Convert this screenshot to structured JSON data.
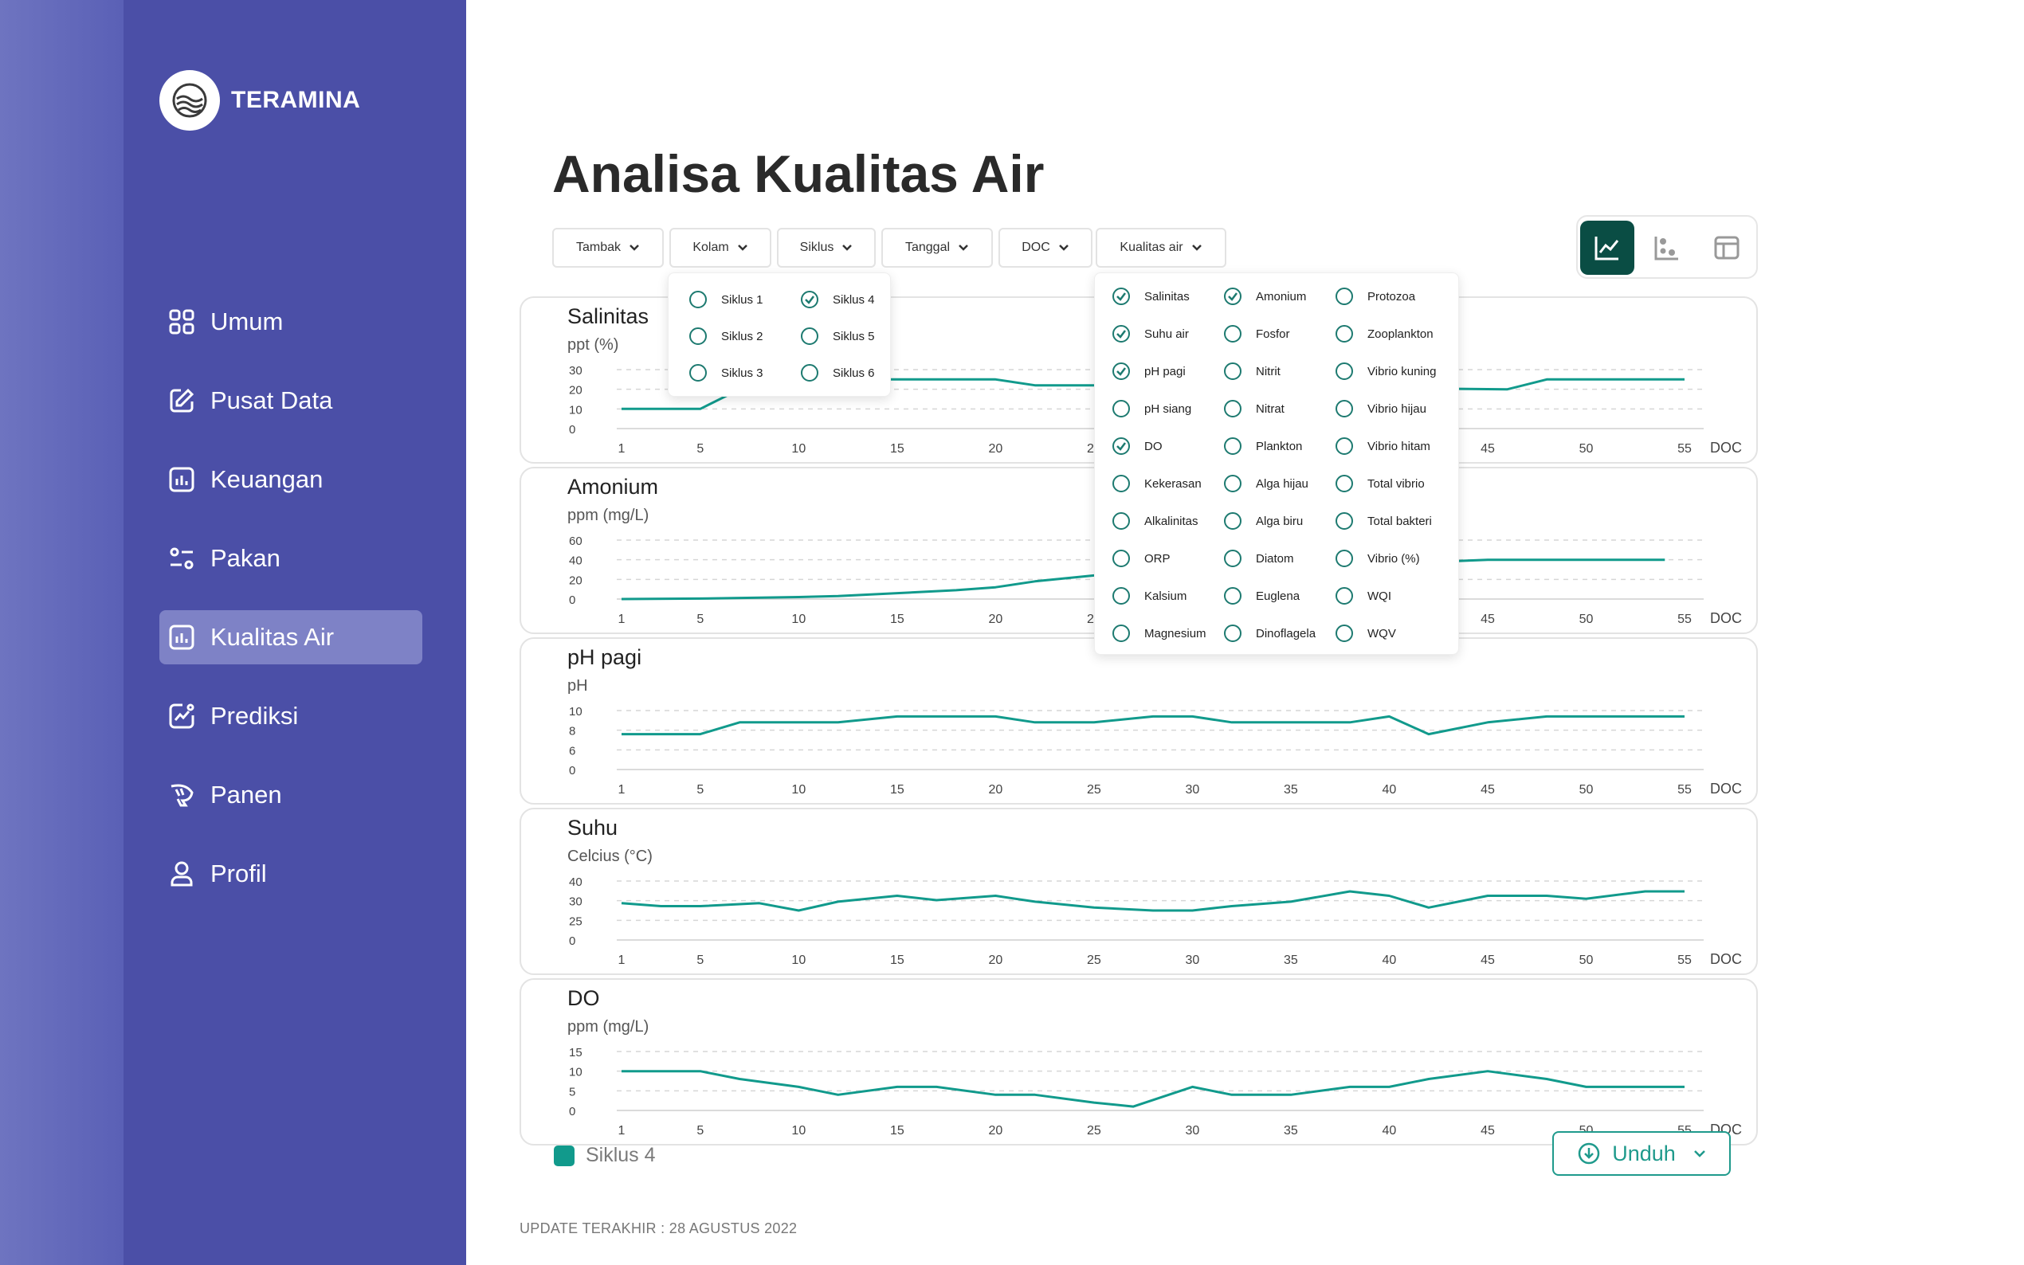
{
  "app": {
    "name": "TERAMINA"
  },
  "sidebar": {
    "items": [
      {
        "label": "Umum",
        "icon": "grid-icon"
      },
      {
        "label": "Pusat Data",
        "icon": "edit-icon"
      },
      {
        "label": "Keuangan",
        "icon": "bar-chart-icon"
      },
      {
        "label": "Pakan",
        "icon": "filter-icon"
      },
      {
        "label": "Kualitas Air",
        "icon": "bar-chart-icon",
        "active": true
      },
      {
        "label": "Prediksi",
        "icon": "trend-icon"
      },
      {
        "label": "Panen",
        "icon": "shrimp-icon"
      },
      {
        "label": "Profil",
        "icon": "user-icon"
      }
    ]
  },
  "page": {
    "title": "Analisa Kualitas Air"
  },
  "filters": [
    "Tambak",
    "Kolam",
    "Siklus",
    "Tanggal",
    "DOC",
    "Kualitas air"
  ],
  "siklus_dropdown": {
    "options": [
      {
        "label": "Siklus 1",
        "checked": false
      },
      {
        "label": "Siklus 2",
        "checked": false
      },
      {
        "label": "Siklus 3",
        "checked": false
      },
      {
        "label": "Siklus  4",
        "checked": true
      },
      {
        "label": "Siklus 5",
        "checked": false
      },
      {
        "label": "Siklus 6",
        "checked": false
      }
    ]
  },
  "kualitas_dropdown": {
    "options": [
      {
        "label": "Salinitas",
        "checked": true
      },
      {
        "label": "Suhu air",
        "checked": true
      },
      {
        "label": "pH pagi",
        "checked": true
      },
      {
        "label": "pH siang",
        "checked": false
      },
      {
        "label": "DO",
        "checked": true
      },
      {
        "label": "Kekerasan",
        "checked": false
      },
      {
        "label": "Alkalinitas",
        "checked": false
      },
      {
        "label": "ORP",
        "checked": false
      },
      {
        "label": "Kalsium",
        "checked": false
      },
      {
        "label": "Magnesium",
        "checked": false
      },
      {
        "label": "Amonium",
        "checked": true
      },
      {
        "label": "Fosfor",
        "checked": false
      },
      {
        "label": "Nitrit",
        "checked": false
      },
      {
        "label": "Nitrat",
        "checked": false
      },
      {
        "label": "Plankton",
        "checked": false
      },
      {
        "label": "Alga hijau",
        "checked": false
      },
      {
        "label": "Alga biru",
        "checked": false
      },
      {
        "label": "Diatom",
        "checked": false
      },
      {
        "label": "Euglena",
        "checked": false
      },
      {
        "label": "Dinoflagela",
        "checked": false
      },
      {
        "label": "Protozoa",
        "checked": false
      },
      {
        "label": "Zooplankton",
        "checked": false
      },
      {
        "label": "Vibrio kuning",
        "checked": false
      },
      {
        "label": "Vibrio hijau",
        "checked": false
      },
      {
        "label": "Vibrio hitam",
        "checked": false
      },
      {
        "label": "Total vibrio",
        "checked": false
      },
      {
        "label": "Total bakteri",
        "checked": false
      },
      {
        "label": "Vibrio (%)",
        "checked": false
      },
      {
        "label": "WQI",
        "checked": false
      },
      {
        "label": "WQV",
        "checked": false
      }
    ]
  },
  "colors": {
    "sidebar": "#4b4fa7",
    "accent": "#119a8c",
    "active_view": "#0a4d44"
  },
  "chart_data": [
    {
      "type": "line",
      "title": "Salinitas",
      "ylabel": "ppt (%)",
      "xlabel": "DOC",
      "yticks": [
        "30",
        "20",
        "10",
        "0"
      ],
      "xticks": [
        "1",
        "5",
        "10",
        "15",
        "20",
        "25",
        "30",
        "35",
        "40",
        "45",
        "50",
        "55"
      ],
      "ylim": [
        0,
        30
      ],
      "series": [
        {
          "name": "Siklus 4",
          "x": [
            1,
            3,
            5,
            7,
            9,
            20,
            22,
            25,
            46,
            48,
            55
          ],
          "y": [
            10,
            10,
            10,
            20,
            25,
            25,
            22,
            22,
            20,
            25,
            25
          ]
        }
      ]
    },
    {
      "type": "line",
      "title": "Amonium",
      "ylabel": "ppm (mg/L)",
      "xlabel": "DOC",
      "yticks": [
        "60",
        "40",
        "20",
        "0"
      ],
      "xticks": [
        "1",
        "5",
        "10",
        "15",
        "20",
        "25",
        "30",
        "35",
        "40",
        "45",
        "50",
        "55"
      ],
      "ylim": [
        0,
        60
      ],
      "series": [
        {
          "name": "Siklus 4",
          "x": [
            1,
            5,
            10,
            12,
            15,
            18,
            20,
            22,
            25,
            45,
            54
          ],
          "y": [
            0,
            0.5,
            2,
            3,
            6,
            9,
            12,
            18,
            24,
            40,
            40
          ]
        }
      ]
    },
    {
      "type": "line",
      "title": "pH pagi",
      "ylabel": "pH",
      "xlabel": "DOC",
      "yticks": [
        "10",
        "8",
        "6",
        "0"
      ],
      "xticks": [
        "1",
        "5",
        "10",
        "15",
        "20",
        "25",
        "30",
        "35",
        "40",
        "45",
        "50",
        "55"
      ],
      "ylim": [
        0,
        10
      ],
      "series": [
        {
          "name": "Siklus 4",
          "x": [
            1,
            5,
            7,
            12,
            15,
            18,
            20,
            22,
            25,
            28,
            30,
            32,
            35,
            38,
            40,
            42,
            45,
            48,
            50,
            55
          ],
          "y": [
            6,
            6,
            8,
            8,
            9,
            9,
            9,
            8,
            8,
            9,
            9,
            8,
            8,
            8,
            9,
            6,
            8,
            9,
            9,
            9
          ]
        }
      ]
    },
    {
      "type": "line",
      "title": "Suhu",
      "ylabel": "Celcius (°C)",
      "xlabel": "DOC",
      "yticks": [
        "40",
        "30",
        "25",
        "0"
      ],
      "xticks": [
        "1",
        "5",
        "10",
        "15",
        "20",
        "25",
        "30",
        "35",
        "40",
        "45",
        "50",
        "55"
      ],
      "ylim": [
        0,
        40
      ],
      "series": [
        {
          "name": "Siklus 4",
          "x": [
            1,
            3,
            5,
            8,
            10,
            12,
            15,
            17,
            20,
            22,
            25,
            28,
            30,
            32,
            35,
            38,
            40,
            42,
            45,
            48,
            50,
            53,
            55
          ],
          "y": [
            25,
            23,
            23,
            25,
            20,
            26,
            30,
            27,
            30,
            26,
            22,
            20,
            20,
            23,
            26,
            33,
            30,
            22,
            30,
            30,
            28,
            33,
            33
          ]
        }
      ]
    },
    {
      "type": "line",
      "title": "DO",
      "ylabel": "ppm (mg/L)",
      "xlabel": "DOC",
      "yticks": [
        "15",
        "10",
        "5",
        "0"
      ],
      "xticks": [
        "1",
        "5",
        "10",
        "15",
        "20",
        "25",
        "30",
        "35",
        "40",
        "45",
        "50",
        "55"
      ],
      "ylim": [
        0,
        15
      ],
      "series": [
        {
          "name": "Siklus 4",
          "x": [
            1,
            5,
            7,
            10,
            12,
            15,
            17,
            20,
            22,
            25,
            27,
            30,
            32,
            35,
            38,
            40,
            42,
            45,
            48,
            50,
            55
          ],
          "y": [
            10,
            10,
            8,
            6,
            4,
            6,
            6,
            4,
            4,
            2,
            1,
            6,
            4,
            4,
            6,
            6,
            8,
            10,
            8,
            6,
            6
          ]
        }
      ]
    }
  ],
  "legend": {
    "label": "Siklus 4"
  },
  "download": {
    "label": "Unduh"
  },
  "footer": {
    "text": "UPDATE TERAKHIR : 28 AGUSTUS 2022"
  }
}
